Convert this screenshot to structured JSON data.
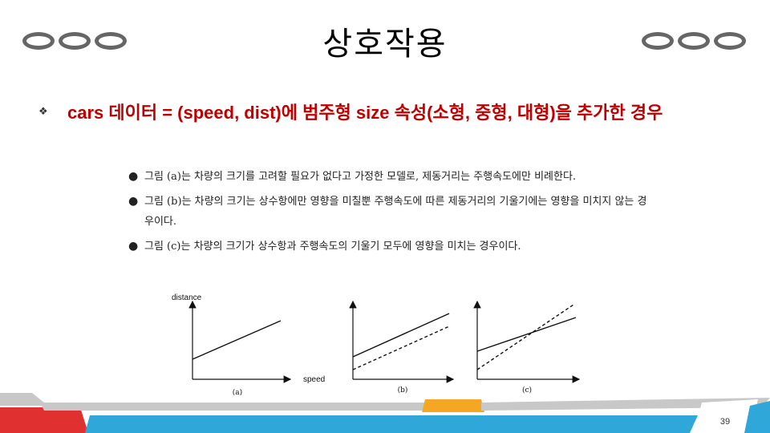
{
  "slide": {
    "title": "상호작용",
    "main_bullet": "cars 데이터 = (speed, dist)에 범주형 size 속성(소형, 중형, 대형)을 추가한 경우",
    "sub_bullets": [
      "그림 (a)는 차량의 크기를 고려할 필요가 없다고 가정한 모델로, 제동거리는 주행속도에만 비례한다.",
      "그림 (b)는 차량의 크기는 상수항에만 영향을 미칠뿐 주행속도에 따른 제동거리의 기울기에는 영향을 미치지 않는 경우이다.",
      "그림 (c)는 차량의 크기가 상수항과 주행속도의 기울기 모두에 영향을 미치는 경우이다."
    ],
    "page_number": "39"
  },
  "figure": {
    "ylabel": "distance",
    "xlabel": "speed",
    "panel_labels": [
      "(a)",
      "(b)",
      "(c)"
    ]
  },
  "icons": {
    "bullet": "square-bullet-icon",
    "sub_bullet": "dot-bullet-icon"
  },
  "colors": {
    "main_text": "#c00000",
    "oval": "#666666",
    "footer_red": "#e03030",
    "footer_blue": "#2fa7d8",
    "footer_orange": "#f5a623",
    "footer_grey": "#c8c8c8"
  }
}
